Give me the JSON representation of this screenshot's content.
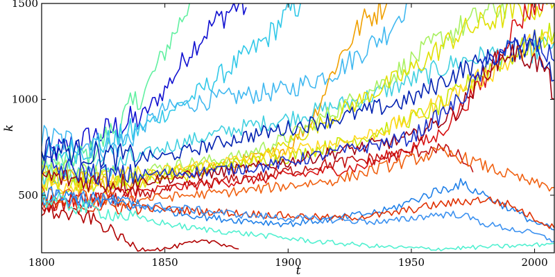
{
  "chart_data": {
    "type": "line",
    "title": "",
    "xlabel": "t",
    "ylabel": "k",
    "xlim": [
      1800,
      2008
    ],
    "ylim": [
      200,
      1500
    ],
    "xticks": [
      1800,
      1850,
      1900,
      1950,
      2000
    ],
    "yticks": [
      500,
      1000,
      1500
    ],
    "grid": false,
    "legend": "none",
    "series": [
      {
        "color": "#1010d0",
        "x": [
          1800,
          1820,
          1840,
          1850,
          1860,
          1870,
          1880,
          1883
        ],
        "y": [
          700,
          800,
          900,
          1050,
          1250,
          1400,
          1500,
          1480
        ]
      },
      {
        "color": "#60f0a0",
        "x": [
          1800,
          1820,
          1830,
          1840,
          1850,
          1860
        ],
        "y": [
          650,
          720,
          850,
          1000,
          1250,
          1500
        ]
      },
      {
        "color": "#30c8e8",
        "x": [
          1800,
          1830,
          1840,
          1860,
          1880,
          1890,
          1900,
          1905
        ],
        "y": [
          700,
          780,
          850,
          1000,
          1200,
          1300,
          1450,
          1500
        ]
      },
      {
        "color": "#40b8f0",
        "x": [
          1800,
          1830,
          1850,
          1870,
          1900,
          1920,
          1940,
          1948
        ],
        "y": [
          800,
          750,
          950,
          1000,
          1050,
          1150,
          1350,
          1500
        ]
      },
      {
        "color": "#40d0e0",
        "x": [
          1800,
          1830,
          1850,
          1880,
          1900,
          1930,
          1950,
          1970,
          1990,
          2000,
          2008
        ],
        "y": [
          600,
          650,
          750,
          850,
          900,
          1000,
          1100,
          1200,
          1250,
          1250,
          1300
        ]
      },
      {
        "color": "#f0a000",
        "x": [
          1800,
          1830,
          1850,
          1870,
          1890,
          1900,
          1910,
          1920,
          1930,
          1940
        ],
        "y": [
          600,
          560,
          600,
          650,
          700,
          750,
          900,
          1200,
          1400,
          1500
        ]
      },
      {
        "color": "#a8f060",
        "x": [
          1800,
          1830,
          1850,
          1880,
          1900,
          1920,
          1940,
          1960,
          1980,
          1990
        ],
        "y": [
          650,
          600,
          650,
          700,
          800,
          950,
          1100,
          1300,
          1450,
          1500
        ]
      },
      {
        "color": "#e0e000",
        "x": [
          1800,
          1830,
          1860,
          1890,
          1910,
          1930,
          1950,
          1970,
          1990,
          2008
        ],
        "y": [
          600,
          550,
          600,
          700,
          850,
          1000,
          1150,
          1350,
          1450,
          1500
        ]
      },
      {
        "color": "#c8e800",
        "x": [
          1800,
          1840,
          1870,
          1900,
          1930,
          1960,
          1980,
          2000,
          2008
        ],
        "y": [
          550,
          600,
          650,
          700,
          800,
          950,
          1150,
          1300,
          1350
        ]
      },
      {
        "color": "#d81010",
        "x": [
          1800,
          1830,
          1860,
          1900,
          1930,
          1960,
          1980,
          1990,
          2000,
          2005
        ],
        "y": [
          450,
          500,
          550,
          600,
          650,
          800,
          1100,
          1350,
          1500,
          1500
        ]
      },
      {
        "color": "#0020b0",
        "x": [
          1800,
          1830,
          1850,
          1880,
          1900,
          1920,
          1950,
          1970,
          1990,
          2000,
          2008
        ],
        "y": [
          750,
          700,
          700,
          800,
          850,
          900,
          1000,
          1150,
          1250,
          1300,
          1100
        ]
      },
      {
        "color": "#ffd820",
        "x": [
          1800,
          1830,
          1860,
          1890,
          1910,
          1930,
          1950,
          1970,
          1990,
          2000,
          2008
        ],
        "y": [
          550,
          580,
          650,
          700,
          750,
          800,
          900,
          1050,
          1200,
          1300,
          1300
        ]
      },
      {
        "color": "#a00010",
        "x": [
          1800,
          1830,
          1860,
          1890,
          1910,
          1930,
          1950,
          1970,
          1980,
          1990,
          2000,
          2005,
          2008
        ],
        "y": [
          600,
          560,
          600,
          650,
          700,
          750,
          800,
          950,
          1150,
          1250,
          1200,
          1150,
          1000
        ]
      },
      {
        "color": "#1830c8",
        "x": [
          1800,
          1830,
          1860,
          1890,
          1910,
          1930,
          1950,
          1970,
          1985,
          2000,
          2008
        ],
        "y": [
          650,
          600,
          620,
          650,
          700,
          750,
          800,
          1000,
          1250,
          1300,
          1200
        ]
      },
      {
        "color": "#c01010",
        "x": [
          1800,
          1830,
          1860,
          1890,
          1910,
          1940,
          1960,
          1970,
          1975
        ],
        "y": [
          450,
          480,
          550,
          600,
          650,
          700,
          750,
          700,
          620
        ]
      },
      {
        "color": "#f06010",
        "x": [
          1800,
          1830,
          1860,
          1880,
          1900,
          1920,
          1940,
          1960,
          1970,
          1980,
          2000,
          2008
        ],
        "y": [
          500,
          470,
          500,
          520,
          550,
          580,
          650,
          720,
          700,
          650,
          560,
          540
        ]
      },
      {
        "color": "#2080e8",
        "x": [
          1800,
          1830,
          1850,
          1870,
          1900,
          1920,
          1940,
          1960,
          1970,
          1980,
          2000,
          2008
        ],
        "y": [
          500,
          460,
          420,
          380,
          350,
          380,
          420,
          520,
          560,
          500,
          360,
          320
        ]
      },
      {
        "color": "#e03000",
        "x": [
          1800,
          1830,
          1860,
          1890,
          1920,
          1940,
          1960,
          1980,
          1990,
          2000,
          2008
        ],
        "y": [
          450,
          440,
          420,
          400,
          380,
          400,
          450,
          480,
          450,
          380,
          330
        ]
      },
      {
        "color": "#3a90f0",
        "x": [
          1800,
          1830,
          1850,
          1880,
          1900,
          1920,
          1940,
          1960,
          1970,
          1980,
          2000,
          2008
        ],
        "y": [
          500,
          460,
          440,
          400,
          380,
          370,
          360,
          400,
          400,
          350,
          300,
          260
        ]
      },
      {
        "color": "#b00000",
        "x": [
          1800,
          1820,
          1830,
          1835,
          1840,
          1850,
          1860,
          1870,
          1880
        ],
        "y": [
          420,
          380,
          300,
          250,
          220,
          220,
          250,
          260,
          220
        ]
      },
      {
        "color": "#50f0d0",
        "x": [
          1800,
          1830,
          1860,
          1890,
          1910,
          1940,
          1960,
          2000,
          2008
        ],
        "y": [
          480,
          400,
          330,
          290,
          260,
          230,
          220,
          240,
          250
        ]
      }
    ]
  }
}
